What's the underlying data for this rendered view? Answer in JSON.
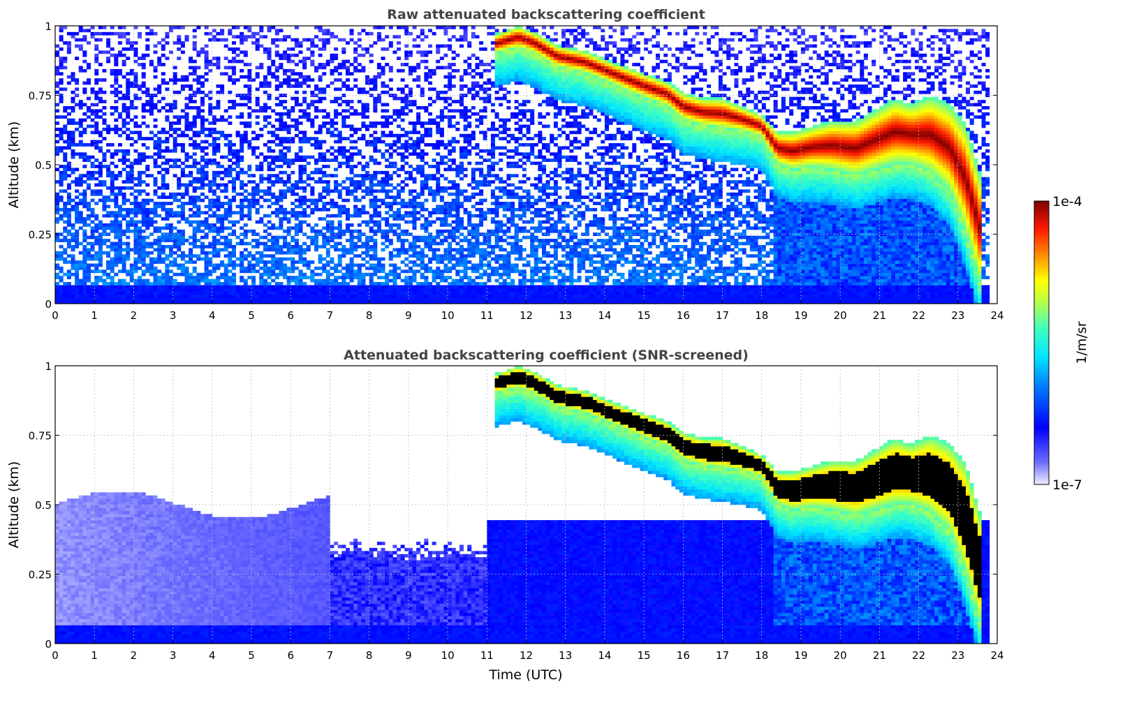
{
  "chart_data": [
    {
      "type": "heatmap",
      "title": "Raw attenuated backscattering coefficient",
      "xlabel": "",
      "ylabel": "Altitude (km)",
      "xlim": [
        0,
        24
      ],
      "ylim": [
        0,
        1
      ],
      "x_ticks": [
        "0",
        "1",
        "2",
        "3",
        "4",
        "5",
        "6",
        "7",
        "8",
        "9",
        "10",
        "11",
        "12",
        "13",
        "14",
        "15",
        "16",
        "17",
        "18",
        "19",
        "20",
        "21",
        "22",
        "23",
        "24"
      ],
      "y_ticks": [
        "0",
        "0.25",
        "0.5",
        "0.75",
        "1"
      ],
      "grid": true,
      "screened": false,
      "layer_top_km": [
        [
          0,
          0.07
        ],
        [
          1,
          0.07
        ],
        [
          2,
          0.07
        ],
        [
          3,
          0.07
        ],
        [
          4,
          0.07
        ],
        [
          5,
          0.07
        ],
        [
          6,
          0.07
        ],
        [
          7,
          0.07
        ],
        [
          8,
          0.07
        ],
        [
          9,
          0.07
        ],
        [
          10,
          0.07
        ],
        [
          11,
          0.07
        ],
        [
          11.5,
          0.07
        ],
        [
          12.2,
          0.07
        ],
        [
          13,
          0.07
        ],
        [
          14,
          0.07
        ],
        [
          15,
          0.07
        ],
        [
          16,
          0.07
        ],
        [
          17,
          0.07
        ],
        [
          18,
          0.07
        ],
        [
          18.5,
          0.07
        ],
        [
          19,
          0.07
        ],
        [
          20,
          0.07
        ],
        [
          21,
          0.07
        ],
        [
          22,
          0.07
        ],
        [
          23,
          0.07
        ],
        [
          23.8,
          0.07
        ]
      ],
      "cloud_base_km": [
        [
          11.2,
          0.9
        ],
        [
          11.8,
          0.92
        ],
        [
          12.2,
          0.9
        ],
        [
          12.8,
          0.85
        ],
        [
          13.5,
          0.83
        ],
        [
          14.2,
          0.79
        ],
        [
          15.0,
          0.74
        ],
        [
          15.6,
          0.71
        ],
        [
          16.0,
          0.66
        ],
        [
          16.5,
          0.64
        ],
        [
          17.0,
          0.63
        ],
        [
          17.5,
          0.62
        ],
        [
          18.0,
          0.6
        ],
        [
          18.4,
          0.5
        ],
        [
          18.8,
          0.48
        ],
        [
          19.3,
          0.49
        ],
        [
          19.8,
          0.48
        ],
        [
          20.4,
          0.46
        ],
        [
          20.9,
          0.48
        ],
        [
          21.4,
          0.5
        ],
        [
          21.8,
          0.5
        ],
        [
          22.3,
          0.47
        ],
        [
          22.8,
          0.4
        ],
        [
          23.2,
          0.25
        ],
        [
          23.6,
          0.05
        ]
      ],
      "cloud_top_km": [
        [
          11.2,
          0.97
        ],
        [
          11.8,
          1.0
        ],
        [
          12.2,
          0.98
        ],
        [
          12.8,
          0.93
        ],
        [
          13.5,
          0.91
        ],
        [
          14.2,
          0.87
        ],
        [
          15.0,
          0.83
        ],
        [
          15.6,
          0.8
        ],
        [
          16.0,
          0.76
        ],
        [
          16.5,
          0.74
        ],
        [
          17.0,
          0.74
        ],
        [
          17.5,
          0.71
        ],
        [
          18.0,
          0.68
        ],
        [
          18.4,
          0.62
        ],
        [
          18.8,
          0.62
        ],
        [
          19.3,
          0.64
        ],
        [
          19.8,
          0.66
        ],
        [
          20.4,
          0.66
        ],
        [
          20.9,
          0.7
        ],
        [
          21.4,
          0.74
        ],
        [
          21.8,
          0.72
        ],
        [
          22.3,
          0.75
        ],
        [
          22.8,
          0.72
        ],
        [
          23.2,
          0.65
        ],
        [
          23.6,
          0.45
        ]
      ]
    },
    {
      "type": "heatmap",
      "title": "Attenuated backscattering coefficient (SNR-screened)",
      "xlabel": "Time (UTC)",
      "ylabel": "Altitude (km)",
      "xlim": [
        0,
        24
      ],
      "ylim": [
        0,
        1
      ],
      "x_ticks": [
        "0",
        "1",
        "2",
        "3",
        "4",
        "5",
        "6",
        "7",
        "8",
        "9",
        "10",
        "11",
        "12",
        "13",
        "14",
        "15",
        "16",
        "17",
        "18",
        "19",
        "20",
        "21",
        "22",
        "23",
        "24"
      ],
      "y_ticks": [
        "0",
        "0.25",
        "0.5",
        "0.75",
        "1"
      ],
      "grid": true,
      "screened": true
    }
  ],
  "colorbar": {
    "label": "1/m/sr",
    "min_label": "1e-7",
    "max_label": "1e-4",
    "colormap": "jet",
    "scale": "log",
    "range": [
      1e-07,
      0.0001
    ]
  }
}
